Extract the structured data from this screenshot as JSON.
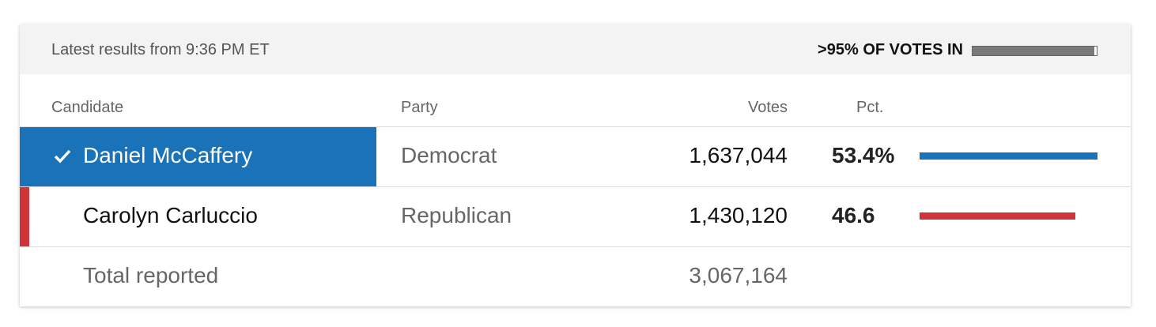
{
  "header": {
    "updated": "Latest results from 9:36 PM ET",
    "reporting": ">95% OF VOTES IN"
  },
  "table": {
    "columns": [
      "Candidate",
      "Party",
      "Votes",
      "Pct."
    ],
    "rows": [
      {
        "candidate": "Daniel McCaffery",
        "party": "Democrat",
        "votes": "1,637,044",
        "pct": 53.4,
        "pct_label": "53.4%",
        "color": "#1a73b8",
        "winner": true
      },
      {
        "candidate": "Carolyn Carluccio",
        "party": "Republican",
        "votes": "1,430,120",
        "pct": 46.6,
        "pct_label": "46.6",
        "color": "#d1333b",
        "winner": false
      }
    ],
    "total": {
      "label": "Total reported",
      "votes": "3,067,164"
    }
  }
}
